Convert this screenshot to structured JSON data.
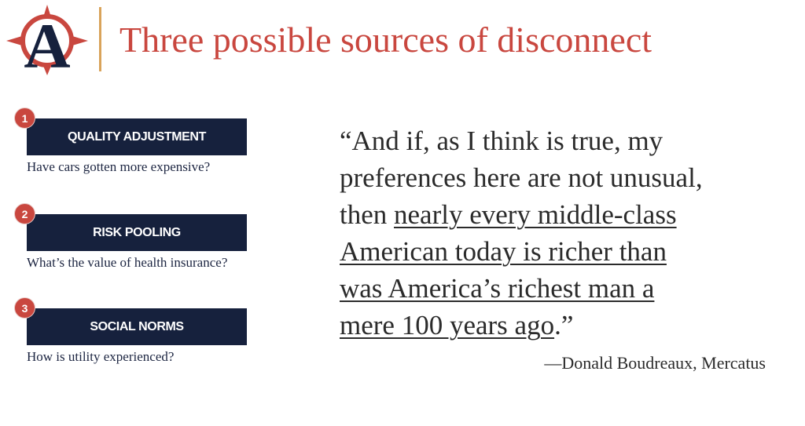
{
  "header": {
    "title": "Three possible sources of disconnect",
    "logo_letter": "A",
    "logo_icon": "compass-a-logo",
    "accent_color": "#c9473f",
    "rule_color": "#d9a35a"
  },
  "sources": [
    {
      "number": "1",
      "label": "QUALITY ADJUSTMENT",
      "question": "Have cars gotten more expensive?"
    },
    {
      "number": "2",
      "label": "RISK POOLING",
      "question": "What’s the value of health insurance?"
    },
    {
      "number": "3",
      "label": "SOCIAL NORMS",
      "question": "How is utility experienced?"
    }
  ],
  "quote": {
    "line1": "“And if, as I think is true, my",
    "line2": "preferences here are not unusual,",
    "line3_plain": "then ",
    "line3_emph": "nearly every middle-class",
    "line4_emph": "American today is richer than",
    "line5_emph": "was America’s richest man a",
    "line6_emph": "mere 100 years ago",
    "line6_close": ".”",
    "attribution": "—Donald Boudreaux, Mercatus"
  },
  "colors": {
    "banner": "#16213d",
    "number_badge": "#c9473f",
    "text_dark": "#1c2541"
  }
}
